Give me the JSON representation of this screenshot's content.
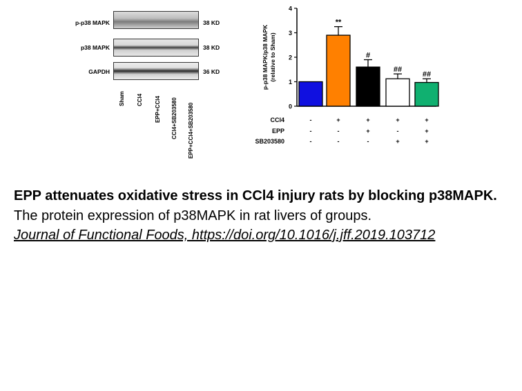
{
  "blot": {
    "rows": [
      {
        "name": "p-p38 MAPK",
        "kd": "38 KD"
      },
      {
        "name": "p38 MAPK",
        "kd": "38 KD"
      },
      {
        "name": "GAPDH",
        "kd": "36 KD"
      }
    ],
    "lanes": [
      "Sham",
      "CCl4",
      "EPP+CCl4",
      "CCl4+SB203580",
      "EPP+CCl4+SB203580"
    ]
  },
  "chart_data": {
    "type": "bar",
    "ylabel": "p-p38 MAPK/p38 MAPK (relative to Sham)",
    "ylabel_line1": "p-p38 MAPK/p38 MAPK",
    "ylabel_line2": "(relative to Sham)",
    "ylim": [
      0,
      4
    ],
    "yticks": [
      "0",
      "1",
      "2",
      "3",
      "4"
    ],
    "series": [
      {
        "name": "Sham",
        "value": 1.0,
        "error": 0.0,
        "color": "#1010e0",
        "annotation": ""
      },
      {
        "name": "CCl4",
        "value": 2.9,
        "error": 0.35,
        "color": "#ff8000",
        "annotation": "**"
      },
      {
        "name": "EPP+CCl4",
        "value": 1.6,
        "error": 0.3,
        "color": "#000000",
        "annotation": "#"
      },
      {
        "name": "CCl4+SB203580",
        "value": 1.12,
        "error": 0.2,
        "color": "#ffffff",
        "annotation": "##"
      },
      {
        "name": "EPP+CCl4+SB203580",
        "value": 0.97,
        "error": 0.15,
        "color": "#10b070",
        "annotation": "##"
      }
    ],
    "treatment_table": {
      "rows": [
        {
          "label": "CCl4",
          "signs": [
            "-",
            "+",
            "+",
            "+",
            "+"
          ]
        },
        {
          "label": "EPP",
          "signs": [
            "-",
            "-",
            "+",
            "-",
            "+"
          ]
        },
        {
          "label": "SB203580",
          "signs": [
            "-",
            "-",
            "-",
            "+",
            "+"
          ]
        }
      ]
    }
  },
  "caption": {
    "title": "EPP attenuates oxidative stress in CCl4 injury rats by blocking p38MAPK.",
    "description": "The protein expression of p38MAPK in rat livers of groups.",
    "reference": "Journal of Functional Foods, https://doi.org/10.1016/j.jff.2019.103712"
  }
}
